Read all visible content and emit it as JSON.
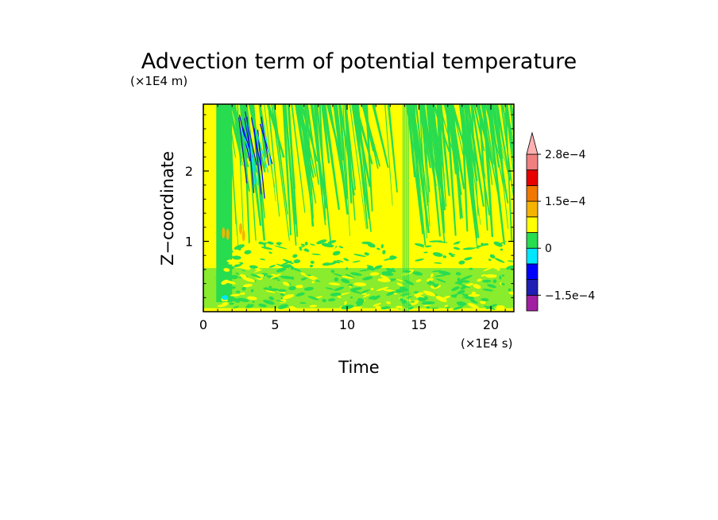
{
  "chart_data": {
    "type": "heatmap",
    "title": "Advection term of potential temperature",
    "xlabel": "Time",
    "xunit": "(×1E4 s)",
    "ylabel": "Z−coordinate",
    "yunit": "(×1E4 m)",
    "xlim": [
      0,
      21.6
    ],
    "ylim": [
      0,
      2.95
    ],
    "xticks": [
      0,
      5,
      10,
      15,
      20
    ],
    "yticks": [
      1,
      2
    ],
    "colorbar": {
      "levels": [
        -0.0002,
        -0.00015,
        -0.0001,
        -5e-05,
        0,
        5e-05,
        0.0001,
        0.00015,
        0.0002,
        0.00025,
        0.00028
      ],
      "colors": [
        "#a020a0",
        "#1e1eb4",
        "#0000ff",
        "#00e6ff",
        "#28dc50",
        "#ffff00",
        "#f5b400",
        "#f07800",
        "#e60000",
        "#f08080",
        "#ffb0b0"
      ],
      "tick_labels": [
        {
          "label": "2.8e−4",
          "value": 0.00028
        },
        {
          "label": "1.5e−4",
          "value": 0.00015
        },
        {
          "label": "0",
          "value": 0
        },
        {
          "label": "−1.5e−4",
          "value": -0.00015
        }
      ]
    },
    "field_description_colors": {
      "dominant_positive": "#ffff00",
      "dominant_negative": "#28dc50"
    }
  }
}
